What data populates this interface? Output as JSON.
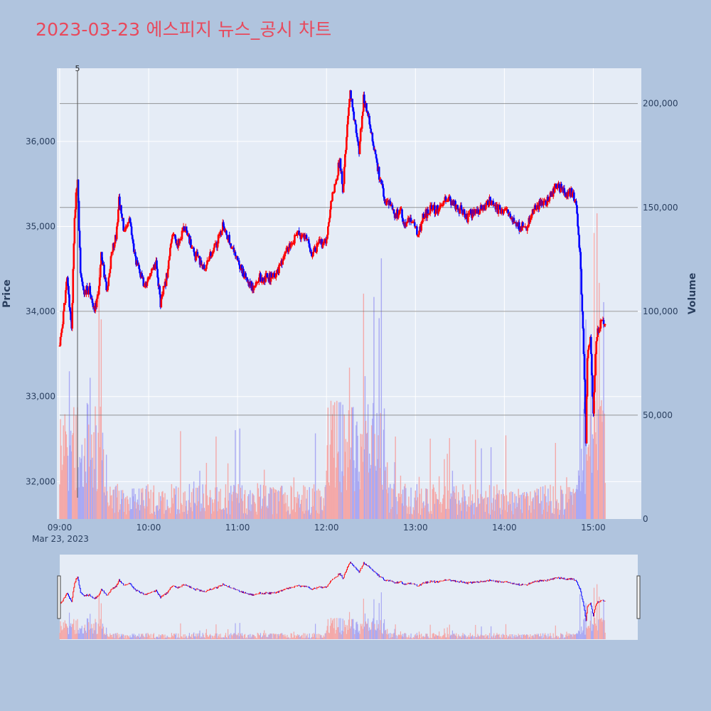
{
  "title": "2023-03-23 에스피지 뉴스_공시 차트",
  "colors": {
    "background": "#b0c4de",
    "plot_bg": "#e5ecf6",
    "title": "#e8495c",
    "up": "#ff0000",
    "down": "#0000ff",
    "volume_up": "#f4a9a9",
    "volume_down": "#a9a9f4",
    "volume_gridline": "#777777"
  },
  "chart_data": {
    "type": "candlestick",
    "grid": true,
    "legend": "none",
    "xlabel": "",
    "ylabel": "Price",
    "y2label": "Volume",
    "x_range": [
      "09:00",
      "15:30"
    ],
    "ylim": [
      31560,
      36860
    ],
    "y2lim": [
      0,
      217000
    ],
    "x_ticks": [
      "09:00",
      "10:00",
      "11:00",
      "12:00",
      "13:00",
      "14:00",
      "15:00"
    ],
    "x_date_label": "Mar 23, 2023",
    "y_ticks": [
      32000,
      33000,
      34000,
      35000,
      36000
    ],
    "y_tick_labels": [
      "32,000",
      "33,000",
      "34,000",
      "35,000",
      "36,000"
    ],
    "y2_ticks": [
      0,
      50000,
      100000,
      150000,
      200000
    ],
    "y2_tick_labels": [
      "0",
      "50,000",
      "100,000",
      "150,000",
      "200,000"
    ],
    "annotation": {
      "text": "5",
      "time": "09:12"
    },
    "rangeslider": true,
    "keypoints": [
      [
        "09:00",
        33600
      ],
      [
        "09:02",
        33900
      ],
      [
        "09:05",
        34400
      ],
      [
        "09:08",
        33800
      ],
      [
        "09:10",
        35100
      ],
      [
        "09:12",
        35600
      ],
      [
        "09:14",
        34400
      ],
      [
        "09:17",
        34200
      ],
      [
        "09:20",
        34300
      ],
      [
        "09:23",
        34000
      ],
      [
        "09:26",
        34200
      ],
      [
        "09:28",
        34700
      ],
      [
        "09:32",
        34200
      ],
      [
        "09:35",
        34700
      ],
      [
        "09:38",
        34900
      ],
      [
        "09:40",
        35300
      ],
      [
        "09:44",
        34900
      ],
      [
        "09:47",
        35100
      ],
      [
        "09:50",
        34700
      ],
      [
        "09:53",
        34500
      ],
      [
        "09:57",
        34300
      ],
      [
        "10:00",
        34400
      ],
      [
        "10:05",
        34600
      ],
      [
        "10:08",
        34100
      ],
      [
        "10:12",
        34400
      ],
      [
        "10:16",
        34900
      ],
      [
        "10:20",
        34800
      ],
      [
        "10:25",
        35000
      ],
      [
        "10:30",
        34700
      ],
      [
        "10:34",
        34600
      ],
      [
        "10:38",
        34500
      ],
      [
        "10:40",
        34600
      ],
      [
        "10:46",
        34800
      ],
      [
        "10:50",
        35000
      ],
      [
        "10:55",
        34800
      ],
      [
        "11:00",
        34600
      ],
      [
        "11:05",
        34400
      ],
      [
        "11:10",
        34300
      ],
      [
        "11:15",
        34400
      ],
      [
        "11:20",
        34400
      ],
      [
        "11:25",
        34400
      ],
      [
        "11:30",
        34600
      ],
      [
        "11:35",
        34800
      ],
      [
        "11:40",
        34900
      ],
      [
        "11:45",
        34900
      ],
      [
        "11:50",
        34700
      ],
      [
        "11:55",
        34800
      ],
      [
        "12:00",
        34800
      ],
      [
        "12:03",
        35300
      ],
      [
        "12:06",
        35500
      ],
      [
        "12:09",
        35800
      ],
      [
        "12:11",
        35400
      ],
      [
        "12:14",
        36200
      ],
      [
        "12:16",
        36600
      ],
      [
        "12:19",
        36200
      ],
      [
        "12:22",
        35900
      ],
      [
        "12:25",
        36500
      ],
      [
        "12:28",
        36300
      ],
      [
        "12:31",
        36000
      ],
      [
        "12:34",
        35700
      ],
      [
        "12:37",
        35500
      ],
      [
        "12:40",
        35300
      ],
      [
        "12:43",
        35300
      ],
      [
        "12:46",
        35100
      ],
      [
        "12:50",
        35200
      ],
      [
        "12:53",
        35000
      ],
      [
        "12:56",
        35100
      ],
      [
        "13:00",
        35000
      ],
      [
        "13:02",
        34900
      ],
      [
        "13:05",
        35100
      ],
      [
        "13:10",
        35200
      ],
      [
        "13:15",
        35200
      ],
      [
        "13:20",
        35300
      ],
      [
        "13:25",
        35300
      ],
      [
        "13:30",
        35200
      ],
      [
        "13:35",
        35100
      ],
      [
        "13:40",
        35200
      ],
      [
        "13:45",
        35200
      ],
      [
        "13:50",
        35300
      ],
      [
        "13:55",
        35200
      ],
      [
        "14:00",
        35200
      ],
      [
        "14:05",
        35100
      ],
      [
        "14:10",
        35000
      ],
      [
        "14:15",
        35000
      ],
      [
        "14:20",
        35200
      ],
      [
        "14:25",
        35300
      ],
      [
        "14:30",
        35300
      ],
      [
        "14:35",
        35500
      ],
      [
        "14:40",
        35400
      ],
      [
        "14:45",
        35400
      ],
      [
        "14:48",
        35300
      ],
      [
        "14:51",
        34700
      ],
      [
        "14:53",
        33800
      ],
      [
        "14:55",
        32500
      ],
      [
        "14:56",
        33500
      ],
      [
        "14:58",
        33700
      ],
      [
        "15:00",
        32800
      ],
      [
        "15:02",
        33700
      ],
      [
        "15:04",
        33800
      ],
      [
        "15:06",
        33900
      ],
      [
        "15:08",
        33800
      ]
    ]
  }
}
